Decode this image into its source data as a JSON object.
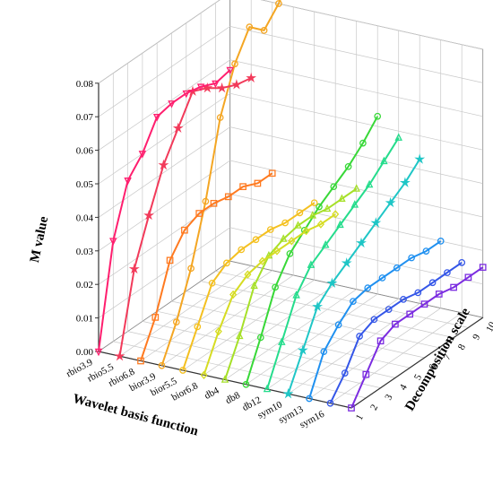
{
  "chart_data": {
    "type": "line",
    "projection": "3d",
    "title": "",
    "zlabel": "M value",
    "xlabel": "Wavelet basis function",
    "ylabel": "Decomposition scale",
    "zlim": [
      0,
      0.08
    ],
    "z_ticks": [
      "0.00",
      "0.01",
      "0.02",
      "0.03",
      "0.04",
      "0.05",
      "0.06",
      "0.07",
      "0.08"
    ],
    "decomposition_scales": [
      1,
      2,
      3,
      4,
      5,
      6,
      7,
      8,
      9,
      10
    ],
    "grid": true,
    "series": [
      {
        "name": "rbio3.9",
        "color": "#ff1e6e",
        "marker": "triangle-down",
        "values": [
          0.0,
          0.03,
          0.045,
          0.05,
          0.058,
          0.059,
          0.059,
          0.058,
          0.056,
          0.057
        ]
      },
      {
        "name": "rbio5.5",
        "color": "#f23a5a",
        "marker": "star",
        "values": [
          0.0,
          0.023,
          0.036,
          0.048,
          0.056,
          0.064,
          0.062,
          0.059,
          0.057,
          0.056
        ]
      },
      {
        "name": "rbio6.8",
        "color": "#ff7a20",
        "marker": "square",
        "values": [
          0.0,
          0.01,
          0.024,
          0.03,
          0.032,
          0.032,
          0.031,
          0.031,
          0.029,
          0.029
        ]
      },
      {
        "name": "bior3.9",
        "color": "#f4a623",
        "marker": "circle",
        "values": [
          0.0,
          0.01,
          0.023,
          0.04,
          0.062,
          0.075,
          0.083,
          0.079,
          0.084,
          0.092
        ]
      },
      {
        "name": "bior5.5",
        "color": "#f4c020",
        "marker": "circle",
        "values": [
          0.0,
          0.01,
          0.02,
          0.023,
          0.024,
          0.024,
          0.024,
          0.023,
          0.023,
          0.023
        ]
      },
      {
        "name": "bior6.8",
        "color": "#d6dc22",
        "marker": "diamond",
        "values": [
          0.0,
          0.01,
          0.018,
          0.021,
          0.022,
          0.022,
          0.022,
          0.022,
          0.021,
          0.021
        ]
      },
      {
        "name": "db4",
        "color": "#a6e028",
        "marker": "triangle-up",
        "values": [
          0.0,
          0.01,
          0.022,
          0.028,
          0.03,
          0.031,
          0.031,
          0.03,
          0.03,
          0.03
        ]
      },
      {
        "name": "db8",
        "color": "#38d838",
        "marker": "circle",
        "values": [
          0.0,
          0.011,
          0.023,
          0.03,
          0.034,
          0.038,
          0.041,
          0.044,
          0.048,
          0.053
        ]
      },
      {
        "name": "db12",
        "color": "#25dc8c",
        "marker": "triangle-up",
        "values": [
          0.0,
          0.011,
          0.022,
          0.028,
          0.031,
          0.034,
          0.037,
          0.04,
          0.044,
          0.048
        ]
      },
      {
        "name": "sym10",
        "color": "#1fc6c6",
        "marker": "star",
        "values": [
          0.0,
          0.01,
          0.02,
          0.024,
          0.027,
          0.03,
          0.033,
          0.036,
          0.039,
          0.043
        ]
      },
      {
        "name": "sym13",
        "color": "#1f90f0",
        "marker": "circle",
        "values": [
          0.0,
          0.011,
          0.016,
          0.02,
          0.021,
          0.021,
          0.021,
          0.021,
          0.02,
          0.02
        ]
      },
      {
        "name": "sym16",
        "color": "#3456e8",
        "marker": "circle",
        "values": [
          0.0,
          0.006,
          0.014,
          0.016,
          0.016,
          0.016,
          0.015,
          0.015,
          0.015,
          0.015
        ]
      },
      {
        "name": "sym16",
        "color": "#7b2ce0",
        "marker": "square",
        "values": [
          0.0,
          0.007,
          0.014,
          0.016,
          0.016,
          0.016,
          0.016,
          0.015,
          0.015,
          0.015
        ]
      }
    ]
  }
}
